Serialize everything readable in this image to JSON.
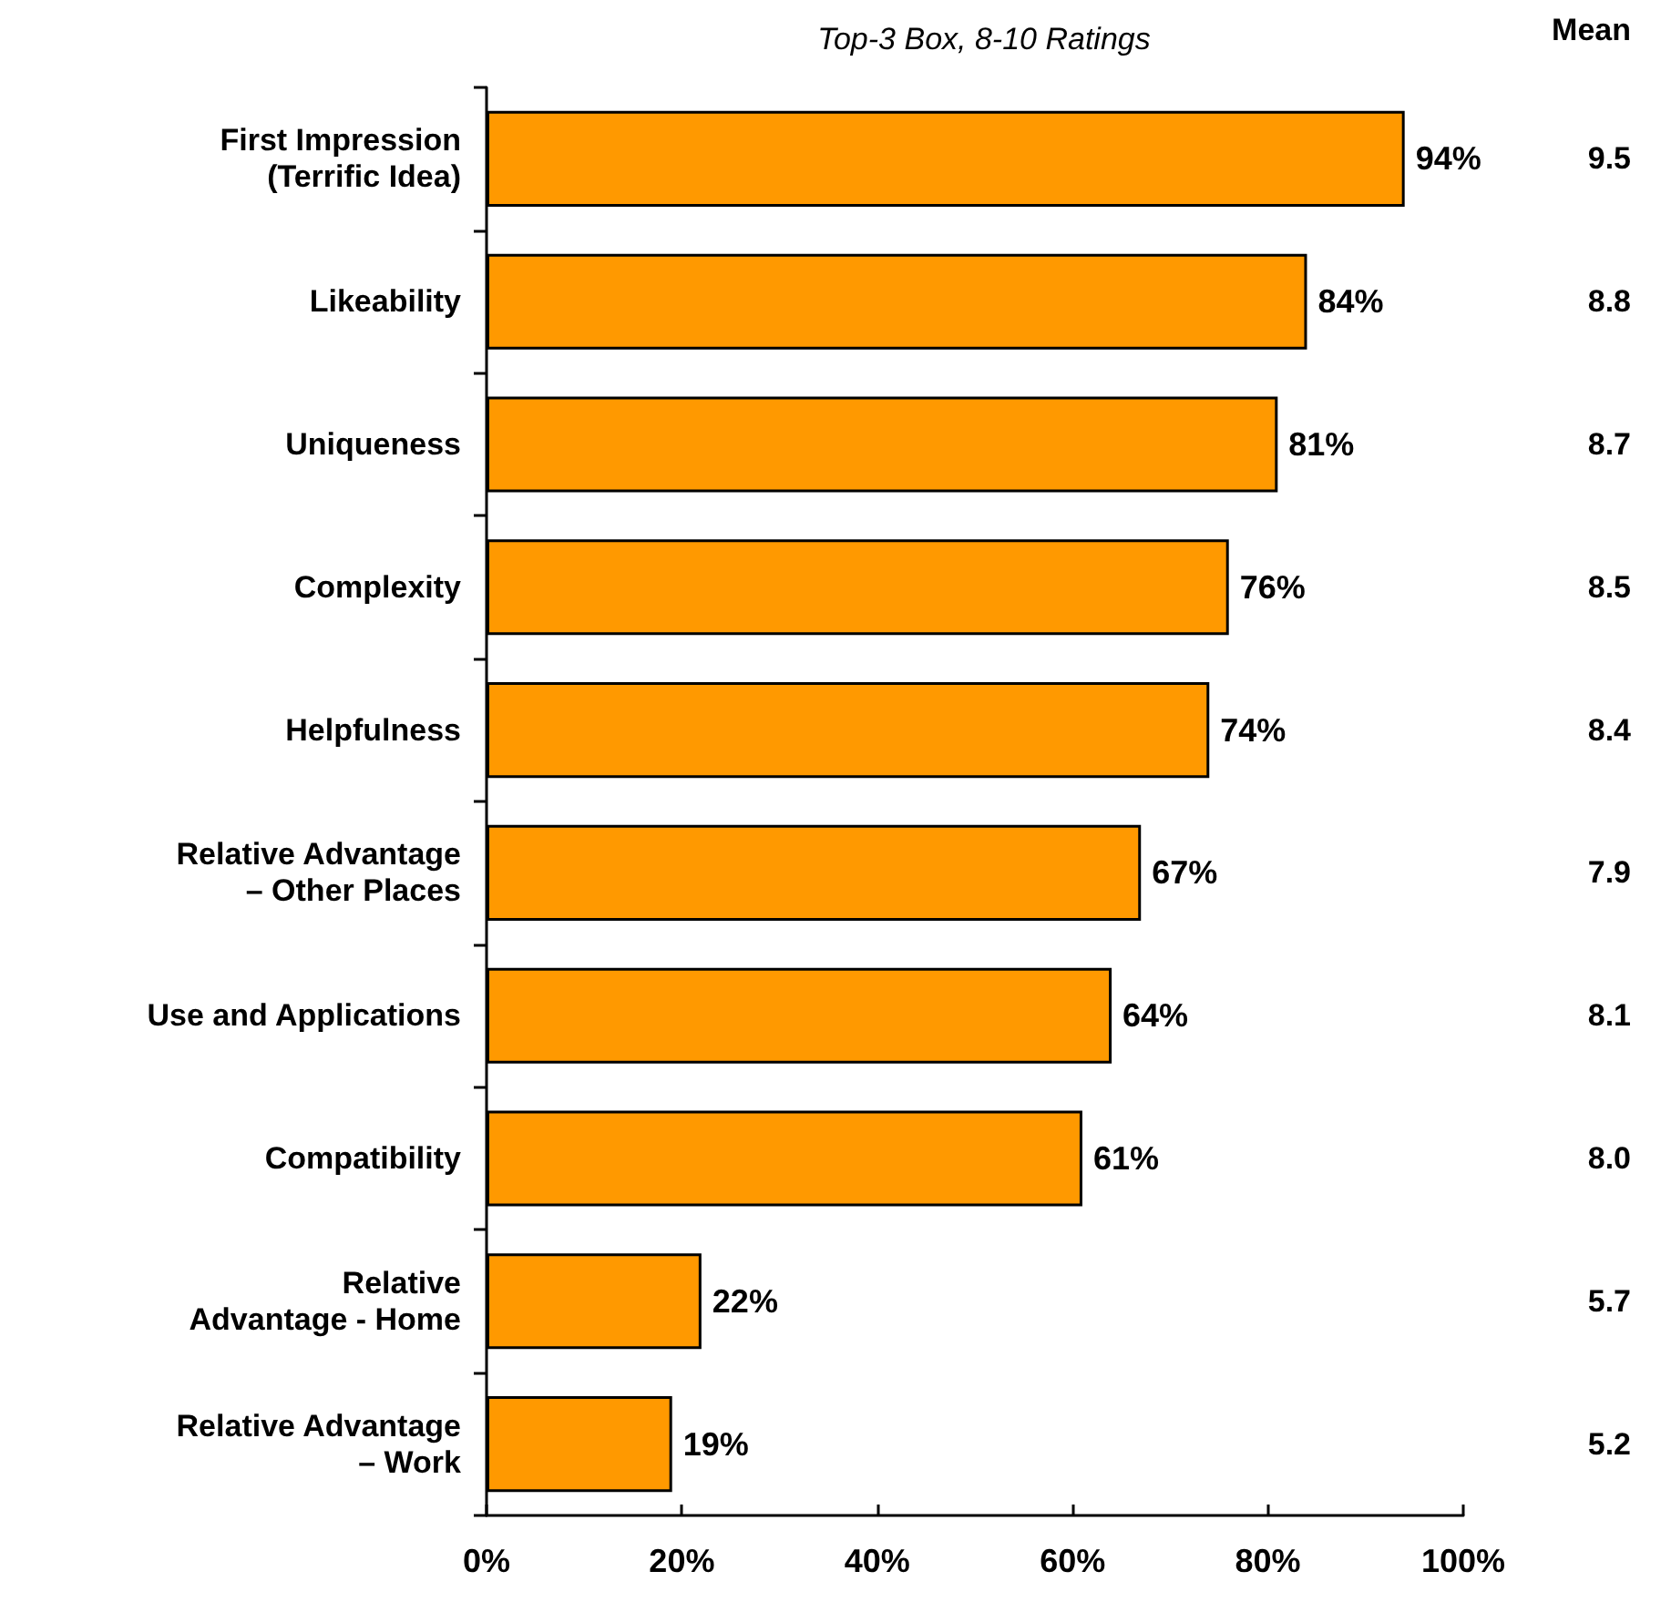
{
  "chart_data": {
    "type": "bar",
    "orientation": "horizontal",
    "title": "Top-3 Box, 8-10 Ratings",
    "categories": [
      "First Impression\n(Terrific Idea)",
      "Likeability",
      "Uniqueness",
      "Complexity",
      "Helpfulness",
      "Relative Advantage\n– Other Places",
      "Use and Applications",
      "Compatibility",
      "Relative\nAdvantage - Home",
      "Relative Advantage\n– Work"
    ],
    "values": [
      94,
      84,
      81,
      76,
      74,
      67,
      64,
      61,
      22,
      19
    ],
    "value_labels": [
      "94%",
      "84%",
      "81%",
      "76%",
      "74%",
      "67%",
      "64%",
      "61%",
      "22%",
      "19%"
    ],
    "color": "#ff9900",
    "xlim": [
      0,
      100
    ],
    "xticks": [
      {
        "value": 0,
        "label": "0%"
      },
      {
        "value": 20,
        "label": "20%"
      },
      {
        "value": 40,
        "label": "40%"
      },
      {
        "value": 60,
        "label": "60%"
      },
      {
        "value": 80,
        "label": "80%"
      },
      {
        "value": 100,
        "label": "100%"
      }
    ],
    "grid": false,
    "annotations": [
      "Mean",
      "9.5",
      "8.8",
      "8.7",
      "8.5",
      "8.4",
      "7.9",
      "8.1",
      "8.0",
      "5.7",
      "5.2"
    ]
  }
}
